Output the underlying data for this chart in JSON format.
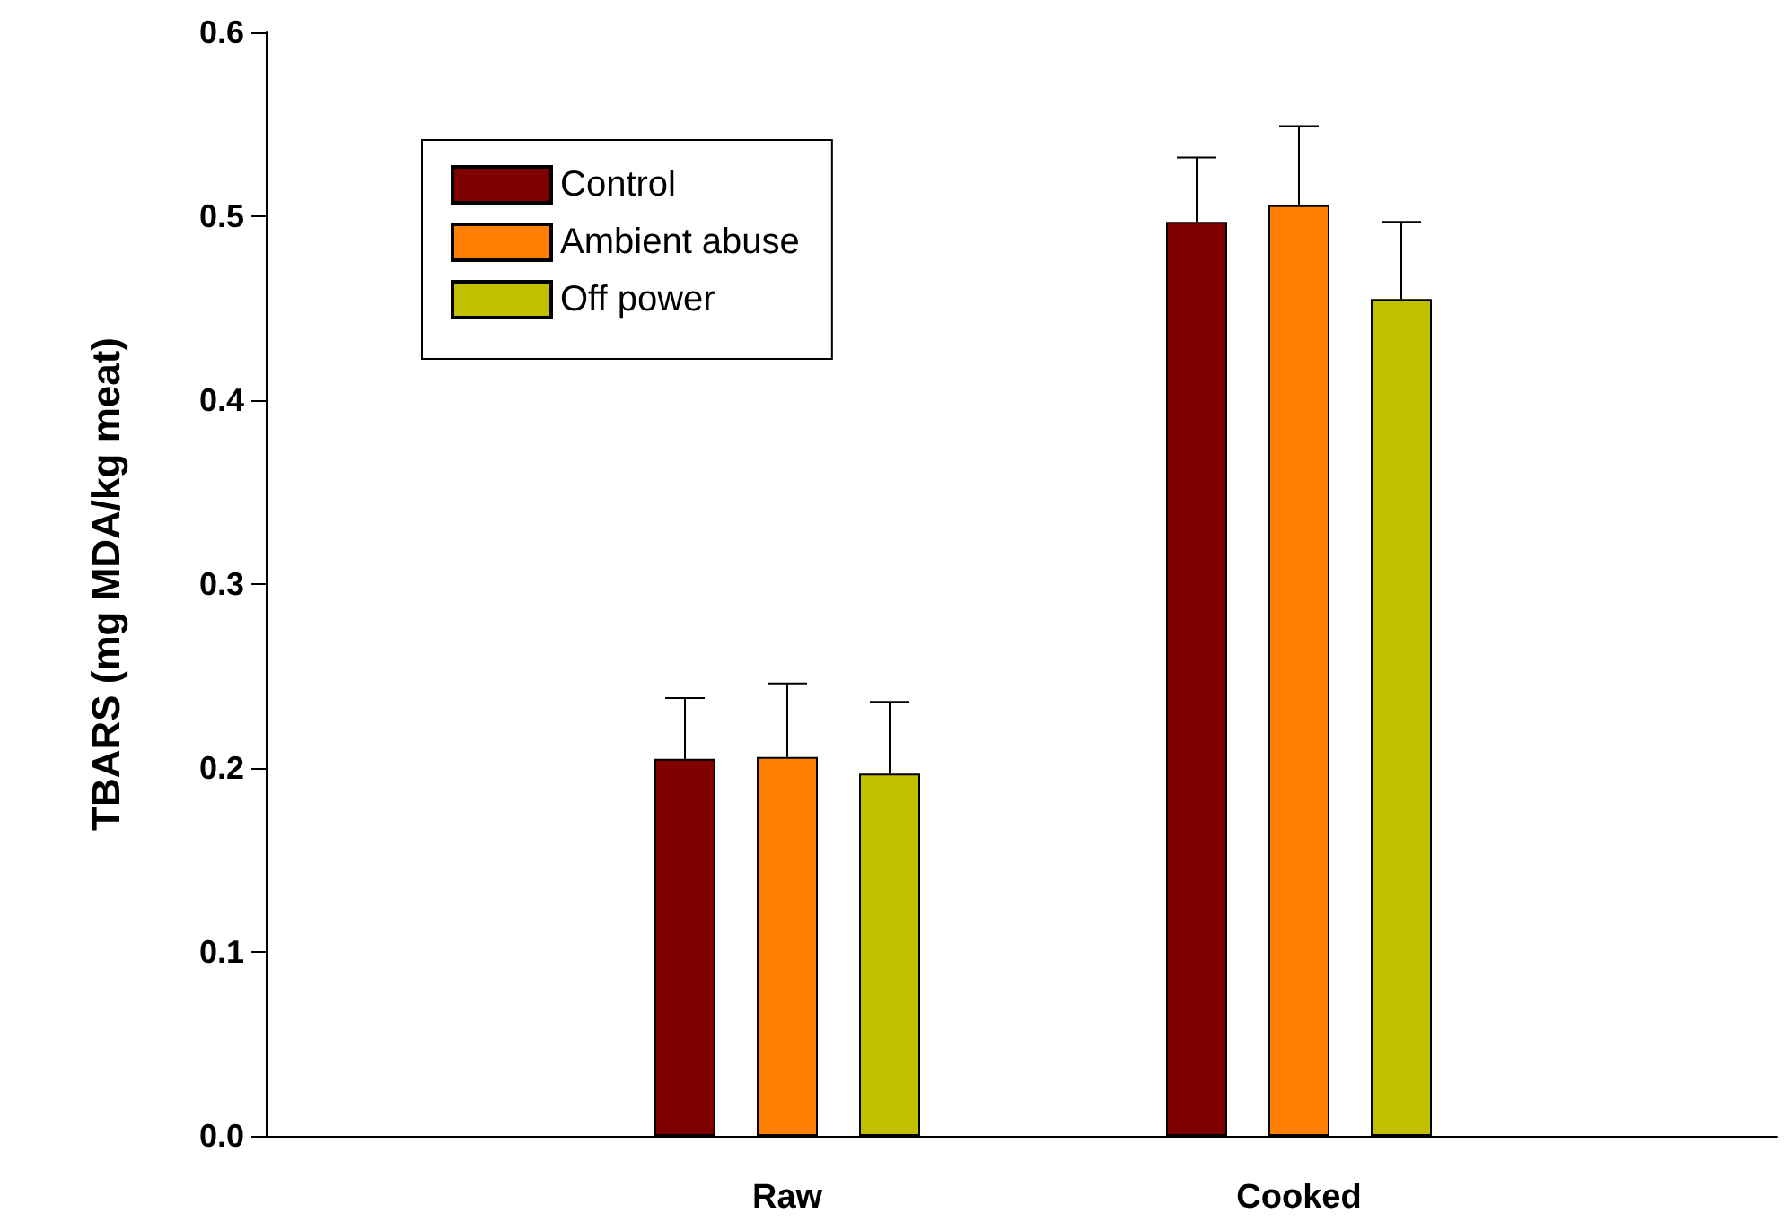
{
  "chart_data": {
    "type": "bar",
    "ylabel": "TBARS (mg MDA/kg meat)",
    "categories": [
      "Raw",
      "Cooked"
    ],
    "series": [
      {
        "name": "Control",
        "color": "#800000",
        "values": [
          0.205,
          0.497
        ],
        "errors": [
          [
            0.205,
            0.238
          ],
          [
            0.497,
            0.532
          ]
        ]
      },
      {
        "name": "Ambient abuse",
        "color": "#ff8000",
        "values": [
          0.206,
          0.506
        ],
        "errors": [
          [
            0.206,
            0.246
          ],
          [
            0.506,
            0.549
          ]
        ]
      },
      {
        "name": "Off power",
        "color": "#c0c000",
        "values": [
          0.197,
          0.455
        ],
        "errors": [
          [
            0.197,
            0.236
          ],
          [
            0.455,
            0.497
          ]
        ]
      }
    ],
    "ylim": [
      0,
      0.6
    ],
    "yticks": [
      {
        "value": 0,
        "label": "0.0"
      },
      {
        "value": 0.1,
        "label": "0.1"
      },
      {
        "value": 0.2,
        "label": "0.2"
      },
      {
        "value": 0.3,
        "label": "0.3"
      },
      {
        "value": 0.4,
        "label": "0.4"
      },
      {
        "value": 0.5,
        "label": "0.5"
      },
      {
        "value": 0.6,
        "label": "0.6"
      }
    ],
    "grid": false,
    "legend": "top left"
  }
}
